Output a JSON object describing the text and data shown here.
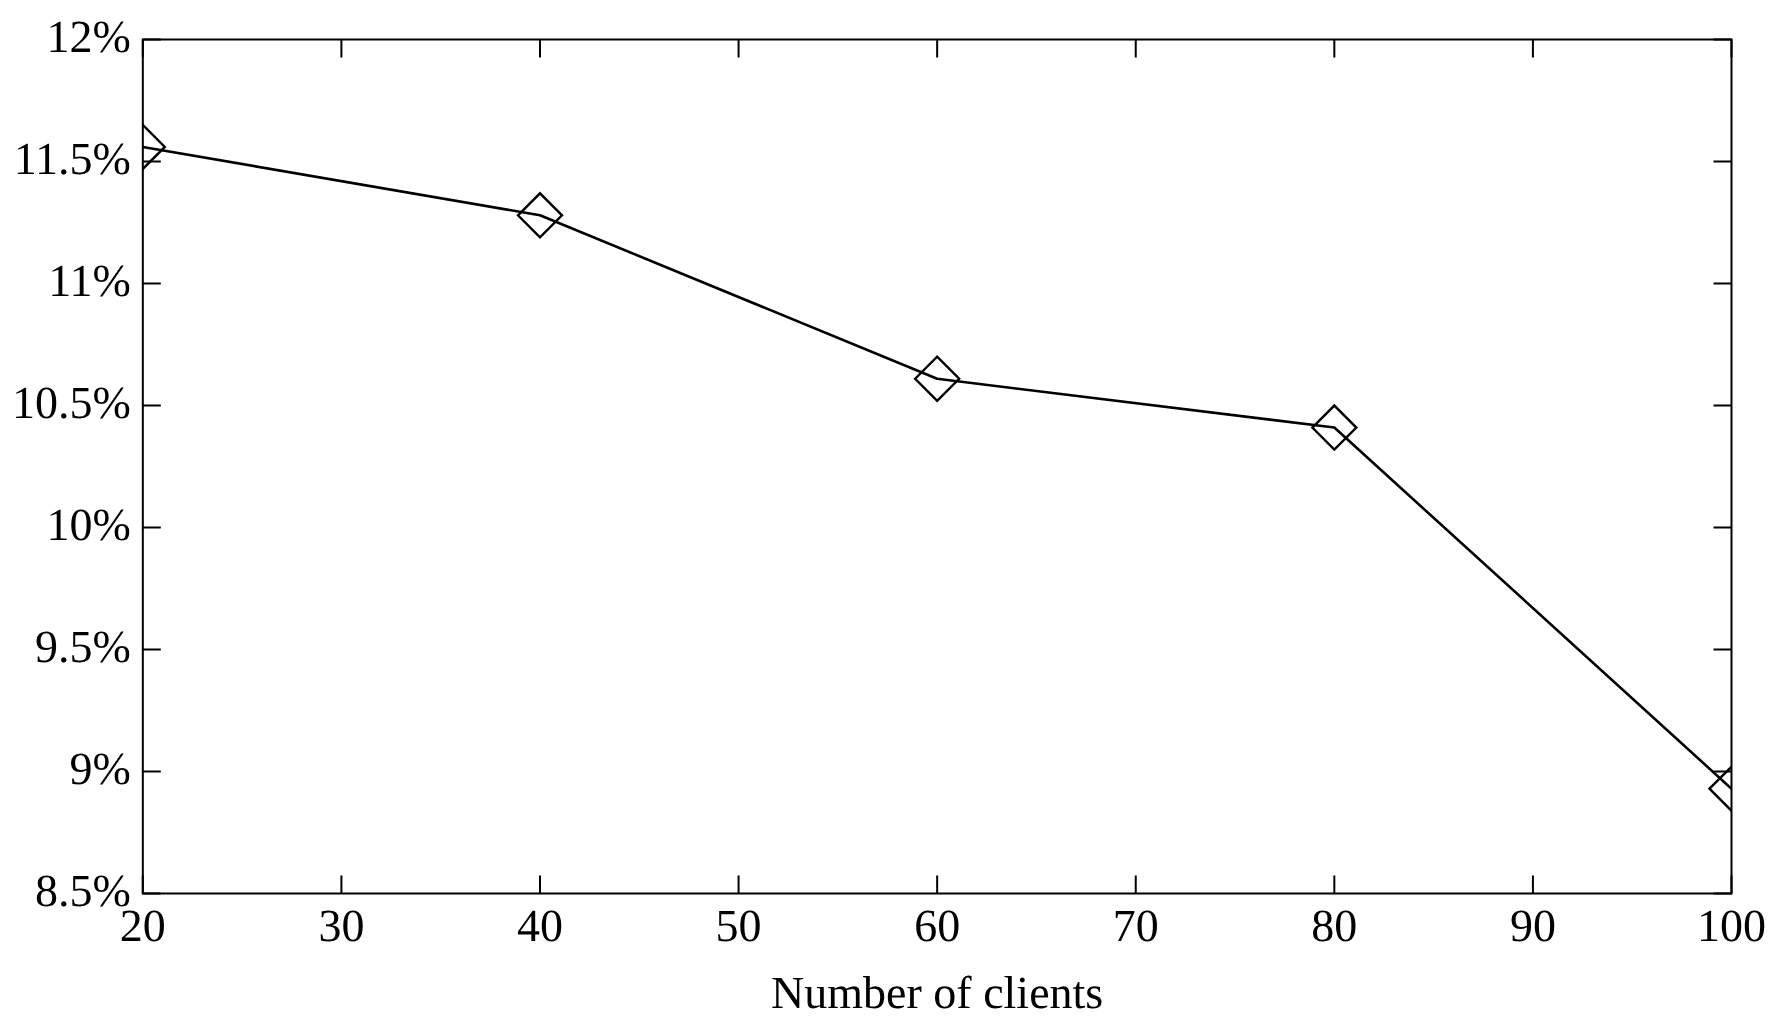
{
  "chart_data": {
    "type": "line",
    "xlabel": "Number of clients",
    "x": [
      20,
      40,
      60,
      80,
      100
    ],
    "series": [
      {
        "color": "#000000",
        "values": [
          11.56,
          11.28,
          10.61,
          10.41,
          8.93
        ]
      }
    ],
    "xlim": [
      20,
      100
    ],
    "xticks": [
      20,
      30,
      40,
      50,
      60,
      70,
      80,
      90,
      100
    ],
    "ylim": [
      8.5,
      12
    ],
    "yticks": [
      {
        "value": 8.5,
        "label": "8.5%"
      },
      {
        "value": 9,
        "label": "9%"
      },
      {
        "value": 9.5,
        "label": "9.5%"
      },
      {
        "value": 10,
        "label": "10%"
      },
      {
        "value": 10.5,
        "label": "10.5%"
      },
      {
        "value": 11,
        "label": "11%"
      },
      {
        "value": 11.5,
        "label": "11.5%"
      },
      {
        "value": 12,
        "label": "12%"
      }
    ],
    "grid": false,
    "legend": false,
    "marker": "diamond",
    "line_style": "solid"
  }
}
